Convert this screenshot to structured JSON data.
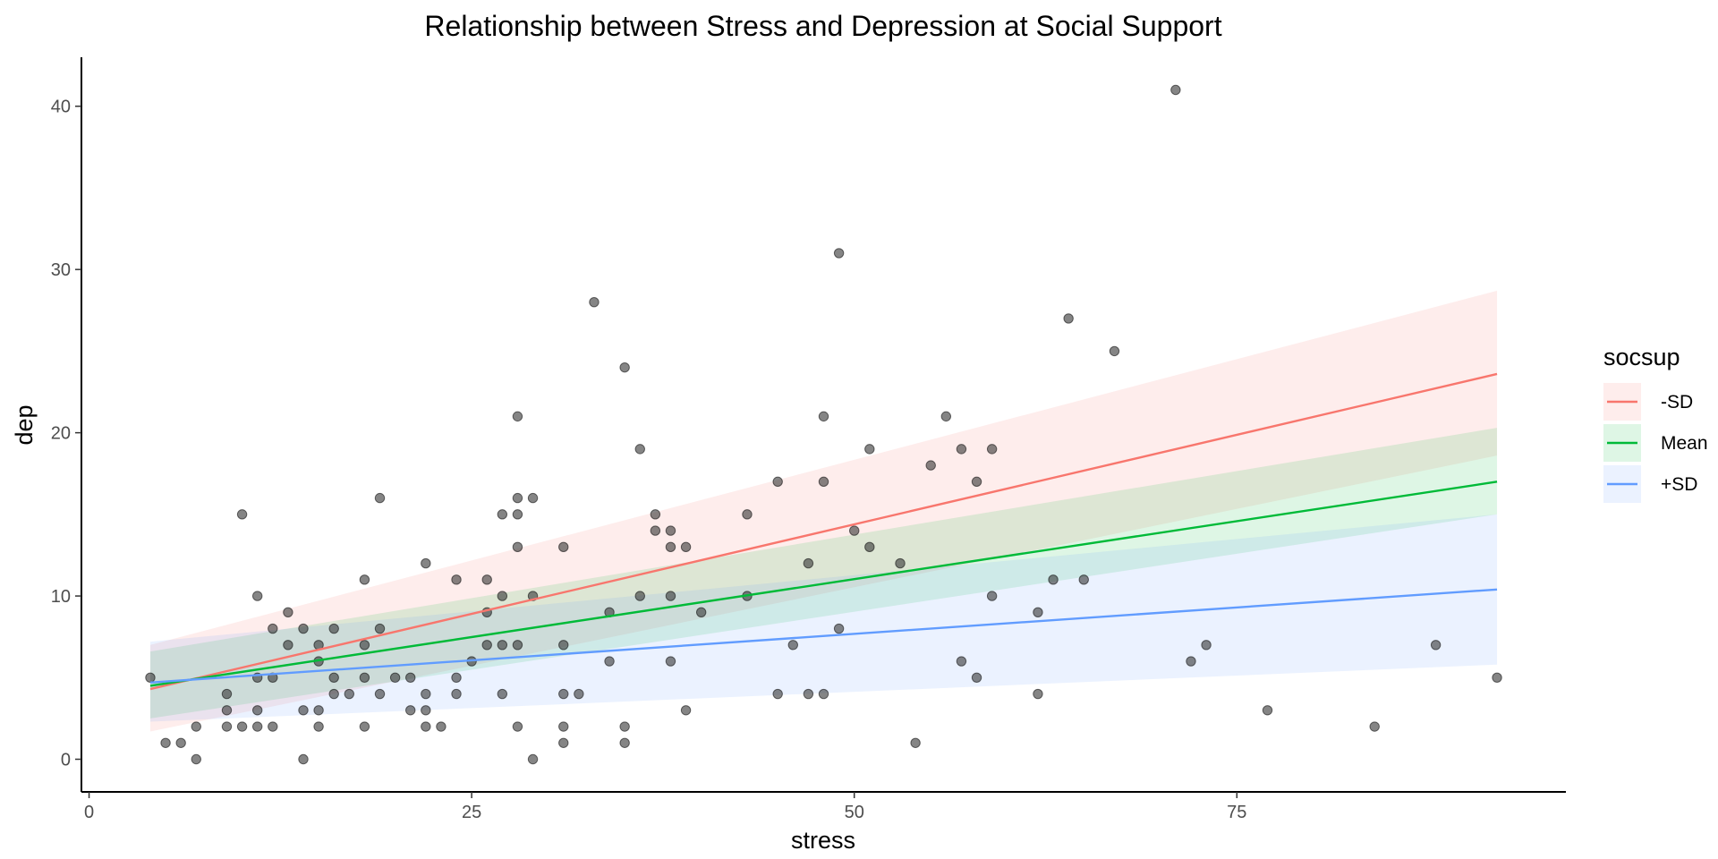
{
  "chart_data": {
    "type": "scatter",
    "title": "Relationship between Stress and Depression at Social Support",
    "xlabel": "stress",
    "ylabel": "dep",
    "xlim": [
      -0.5,
      96.5
    ],
    "ylim": [
      -2,
      43
    ],
    "xticks": [
      0,
      25,
      50,
      75
    ],
    "yticks": [
      0,
      10,
      20,
      30,
      40
    ],
    "grid": false,
    "legend": {
      "title": "socsup",
      "placement": "right",
      "entries": [
        "-SD",
        "Mean",
        "+SD"
      ]
    },
    "points": [
      [
        4,
        5
      ],
      [
        5,
        1
      ],
      [
        6,
        1
      ],
      [
        7,
        2
      ],
      [
        7,
        0
      ],
      [
        9,
        4
      ],
      [
        9,
        3
      ],
      [
        9,
        2
      ],
      [
        10,
        15
      ],
      [
        10,
        2
      ],
      [
        11,
        10
      ],
      [
        11,
        5
      ],
      [
        11,
        3
      ],
      [
        11,
        2
      ],
      [
        12,
        8
      ],
      [
        12,
        5
      ],
      [
        12,
        2
      ],
      [
        13,
        9
      ],
      [
        13,
        7
      ],
      [
        14,
        8
      ],
      [
        14,
        3
      ],
      [
        14,
        0
      ],
      [
        15,
        7
      ],
      [
        15,
        6
      ],
      [
        15,
        3
      ],
      [
        15,
        2
      ],
      [
        16,
        8
      ],
      [
        16,
        5
      ],
      [
        16,
        4
      ],
      [
        17,
        4
      ],
      [
        18,
        11
      ],
      [
        18,
        7
      ],
      [
        18,
        5
      ],
      [
        18,
        2
      ],
      [
        19,
        16
      ],
      [
        19,
        8
      ],
      [
        19,
        4
      ],
      [
        20,
        5
      ],
      [
        21,
        5
      ],
      [
        21,
        3
      ],
      [
        22,
        12
      ],
      [
        22,
        4
      ],
      [
        22,
        3
      ],
      [
        22,
        2
      ],
      [
        23,
        2
      ],
      [
        24,
        11
      ],
      [
        24,
        5
      ],
      [
        24,
        4
      ],
      [
        25,
        6
      ],
      [
        26,
        11
      ],
      [
        26,
        9
      ],
      [
        26,
        7
      ],
      [
        27,
        15
      ],
      [
        27,
        10
      ],
      [
        27,
        7
      ],
      [
        27,
        4
      ],
      [
        28,
        21
      ],
      [
        28,
        16
      ],
      [
        28,
        15
      ],
      [
        28,
        13
      ],
      [
        28,
        7
      ],
      [
        28,
        2
      ],
      [
        29,
        16
      ],
      [
        29,
        10
      ],
      [
        29,
        0
      ],
      [
        31,
        13
      ],
      [
        31,
        7
      ],
      [
        31,
        4
      ],
      [
        31,
        2
      ],
      [
        31,
        1
      ],
      [
        32,
        4
      ],
      [
        33,
        28
      ],
      [
        34,
        9
      ],
      [
        34,
        6
      ],
      [
        35,
        24
      ],
      [
        35,
        2
      ],
      [
        35,
        1
      ],
      [
        36,
        19
      ],
      [
        36,
        10
      ],
      [
        37,
        15
      ],
      [
        37,
        14
      ],
      [
        38,
        14
      ],
      [
        38,
        13
      ],
      [
        38,
        10
      ],
      [
        38,
        6
      ],
      [
        39,
        13
      ],
      [
        39,
        3
      ],
      [
        40,
        9
      ],
      [
        43,
        15
      ],
      [
        43,
        10
      ],
      [
        45,
        17
      ],
      [
        45,
        4
      ],
      [
        46,
        7
      ],
      [
        47,
        12
      ],
      [
        47,
        4
      ],
      [
        48,
        21
      ],
      [
        48,
        17
      ],
      [
        48,
        4
      ],
      [
        49,
        31
      ],
      [
        49,
        8
      ],
      [
        50,
        14
      ],
      [
        51,
        19
      ],
      [
        51,
        13
      ],
      [
        53,
        12
      ],
      [
        54,
        1
      ],
      [
        55,
        18
      ],
      [
        56,
        21
      ],
      [
        57,
        19
      ],
      [
        57,
        6
      ],
      [
        58,
        17
      ],
      [
        58,
        5
      ],
      [
        59,
        19
      ],
      [
        59,
        10
      ],
      [
        62,
        9
      ],
      [
        62,
        4
      ],
      [
        63,
        11
      ],
      [
        64,
        27
      ],
      [
        65,
        11
      ],
      [
        67,
        25
      ],
      [
        71,
        41
      ],
      [
        72,
        6
      ],
      [
        73,
        7
      ],
      [
        77,
        3
      ],
      [
        84,
        2
      ],
      [
        88,
        7
      ],
      [
        92,
        5
      ]
    ],
    "point_color": "#333333",
    "point_opacity": 0.6,
    "series": [
      {
        "name": "-SD",
        "color": "#F8766D",
        "x": [
          4,
          92
        ],
        "y": [
          4.3,
          23.6
        ],
        "ci_lower": [
          1.7,
          18.6
        ],
        "ci_upper": [
          7.0,
          28.7
        ]
      },
      {
        "name": "Mean",
        "color": "#00BA38",
        "x": [
          4,
          92
        ],
        "y": [
          4.5,
          17.0
        ],
        "ci_lower": [
          2.5,
          15.0
        ],
        "ci_upper": [
          6.6,
          20.3
        ]
      },
      {
        "name": "+SD",
        "color": "#619CFF",
        "x": [
          4,
          92
        ],
        "y": [
          4.7,
          10.4
        ],
        "ci_lower": [
          2.3,
          5.8
        ],
        "ci_upper": [
          7.2,
          15.0
        ]
      }
    ]
  }
}
